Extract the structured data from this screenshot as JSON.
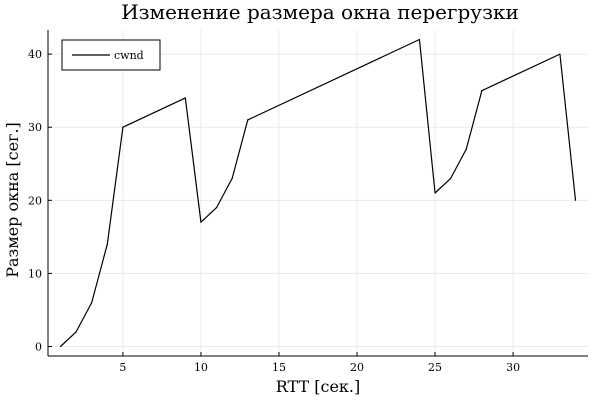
{
  "chart_data": {
    "type": "line",
    "title": "Изменение размера окна перегрузки",
    "xlabel": "RTT [сек.]",
    "ylabel": "Размер окна [сег.]",
    "xlim": [
      0.2,
      34.8
    ],
    "ylim": [
      -1.3,
      43.3
    ],
    "xticks": [
      5,
      10,
      15,
      20,
      25,
      30
    ],
    "yticks": [
      0,
      10,
      20,
      30,
      40
    ],
    "grid": true,
    "legend_position": "top-left",
    "series": [
      {
        "name": "cwnd",
        "color": "#000000",
        "x": [
          1,
          2,
          3,
          4,
          5,
          9,
          10,
          11,
          12,
          13,
          24,
          25,
          26,
          27,
          28,
          33,
          34
        ],
        "y": [
          0,
          2,
          6,
          14,
          30,
          34,
          17,
          19,
          23,
          31,
          42,
          21,
          23,
          27,
          35,
          40,
          20
        ]
      }
    ]
  }
}
